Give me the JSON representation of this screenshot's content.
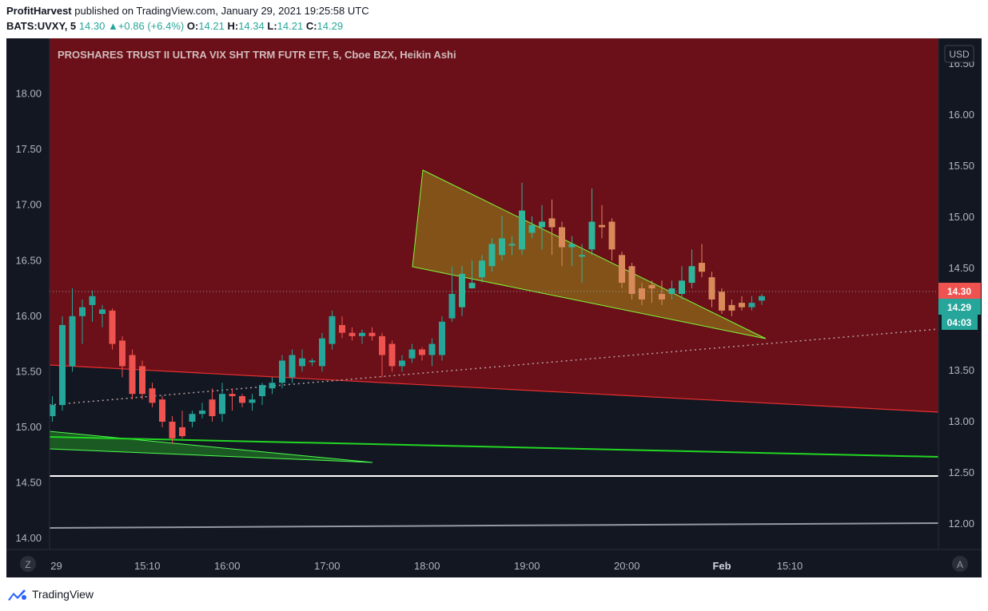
{
  "header": {
    "author": "ProfitHarvest",
    "published": "published on TradingView.com, January 29, 2021 19:25:58 UTC",
    "symbol": "BATS:UVXY, 5",
    "last": "14.30",
    "change": "+0.86 (+6.4%)",
    "o_label": "O:",
    "o": "14.21",
    "h_label": "H:",
    "h": "14.34",
    "l_label": "L:",
    "l": "14.21",
    "c_label": "C:",
    "c": "14.29"
  },
  "footer": {
    "brand": "TradingView"
  },
  "colors": {
    "background": "#131722",
    "up": "#26a69a",
    "down": "#ef5350",
    "zone": "#6b0f18",
    "wedge_fill": "#8a6a1a",
    "wedge_line": "#7cfc3a",
    "green_line": "#22d622",
    "red_line": "#e83030",
    "white_line": "#ffffff",
    "gray_line": "#9598a1"
  },
  "chart_data": {
    "type": "candlestick",
    "title": "PROSHARES TRUST II ULTRA VIX SHT TRM FUTR ETF, 5, Cboe BZX, Heikin Ashi",
    "currency": "USD",
    "left_axis": {
      "range": [
        13.9,
        18.5
      ],
      "ticks": [
        "18.00",
        "17.50",
        "17.00",
        "16.50",
        "16.00",
        "15.50",
        "15.00",
        "14.50",
        "14.00"
      ]
    },
    "right_axis": {
      "range": [
        11.75,
        16.75
      ],
      "ticks": [
        "16.50",
        "16.00",
        "15.50",
        "15.00",
        "14.50",
        "14.00",
        "13.50",
        "13.00",
        "12.50",
        "12.00"
      ]
    },
    "x_ticks": [
      "29",
      "15:10",
      "16:00",
      "17:00",
      "18:00",
      "19:00",
      "20:00",
      "Feb",
      "15:10"
    ],
    "x_tick_index": [
      0.4,
      9.5,
      17.5,
      27.5,
      37.5,
      47.5,
      57.5,
      67.0,
      73.8
    ],
    "price_labels": {
      "last": "14.30",
      "close": "14.29",
      "countdown": "04:03"
    },
    "axis_buttons": {
      "left": "Z",
      "right": "A"
    },
    "grid": true,
    "candles": [
      [
        15.1,
        15.2,
        15.05,
        15.28
      ],
      [
        15.2,
        15.92,
        15.15,
        16.0
      ],
      [
        15.55,
        16.0,
        15.5,
        16.25
      ],
      [
        16.0,
        16.08,
        15.75,
        16.15
      ],
      [
        16.1,
        16.18,
        15.95,
        16.23
      ],
      [
        16.02,
        16.06,
        15.9,
        16.1
      ],
      [
        16.05,
        15.75,
        15.7,
        16.07
      ],
      [
        15.78,
        15.55,
        15.45,
        15.82
      ],
      [
        15.65,
        15.3,
        15.25,
        15.7
      ],
      [
        15.55,
        15.3,
        15.25,
        15.6
      ],
      [
        15.35,
        15.22,
        15.18,
        15.4
      ],
      [
        15.25,
        15.05,
        15.0,
        15.28
      ],
      [
        15.05,
        14.9,
        14.85,
        15.1
      ],
      [
        15.0,
        14.92,
        14.9,
        15.15
      ],
      [
        15.05,
        15.12,
        15.0,
        15.15
      ],
      [
        15.12,
        15.15,
        15.08,
        15.22
      ],
      [
        15.25,
        15.1,
        15.05,
        15.35
      ],
      [
        15.12,
        15.3,
        15.05,
        15.4
      ],
      [
        15.3,
        15.28,
        15.15,
        15.35
      ],
      [
        15.28,
        15.22,
        15.18,
        15.3
      ],
      [
        15.22,
        15.25,
        15.15,
        15.3
      ],
      [
        15.28,
        15.38,
        15.2,
        15.4
      ],
      [
        15.35,
        15.4,
        15.3,
        15.45
      ],
      [
        15.4,
        15.6,
        15.35,
        15.65
      ],
      [
        15.45,
        15.65,
        15.4,
        15.7
      ],
      [
        15.55,
        15.62,
        15.5,
        15.7
      ],
      [
        15.6,
        15.6,
        15.55,
        15.62
      ],
      [
        15.55,
        15.8,
        15.5,
        15.85
      ],
      [
        15.75,
        16.0,
        15.7,
        16.05
      ],
      [
        15.92,
        15.85,
        15.8,
        16.0
      ],
      [
        15.85,
        15.82,
        15.78,
        15.9
      ],
      [
        15.82,
        15.85,
        15.75,
        15.88
      ],
      [
        15.85,
        15.82,
        15.78,
        15.9
      ],
      [
        15.82,
        15.65,
        15.45,
        15.85
      ],
      [
        15.75,
        15.55,
        15.5,
        15.78
      ],
      [
        15.55,
        15.6,
        15.5,
        15.65
      ],
      [
        15.62,
        15.7,
        15.58,
        15.75
      ],
      [
        15.7,
        15.65,
        15.6,
        15.72
      ],
      [
        15.65,
        15.75,
        15.55,
        15.8
      ],
      [
        15.65,
        15.95,
        15.6,
        16.0
      ],
      [
        15.98,
        16.2,
        15.95,
        16.45
      ],
      [
        16.08,
        16.38,
        16.0,
        16.45
      ],
      [
        16.25,
        16.3,
        16.25,
        16.5
      ],
      [
        16.35,
        16.5,
        16.3,
        16.55
      ],
      [
        16.45,
        16.65,
        16.4,
        16.7
      ],
      [
        16.55,
        16.7,
        16.5,
        16.9
      ],
      [
        16.65,
        16.65,
        16.55,
        16.72
      ],
      [
        16.6,
        16.95,
        16.55,
        17.2
      ],
      [
        16.75,
        16.82,
        16.7,
        16.9
      ],
      [
        16.8,
        16.85,
        16.6,
        17.0
      ],
      [
        16.88,
        16.8,
        16.55,
        17.05
      ],
      [
        16.8,
        16.62,
        16.45,
        16.85
      ],
      [
        16.62,
        16.65,
        16.45,
        16.72
      ],
      [
        16.55,
        16.55,
        16.3,
        16.65
      ],
      [
        16.6,
        16.85,
        16.55,
        17.15
      ],
      [
        16.82,
        16.8,
        16.7,
        17.0
      ],
      [
        16.85,
        16.6,
        16.5,
        16.88
      ],
      [
        16.55,
        16.3,
        16.25,
        16.58
      ],
      [
        16.45,
        16.2,
        16.15,
        16.48
      ],
      [
        16.25,
        16.15,
        16.1,
        16.3
      ],
      [
        16.28,
        16.25,
        16.12,
        16.32
      ],
      [
        16.2,
        16.15,
        16.1,
        16.32
      ],
      [
        16.2,
        16.25,
        16.15,
        16.32
      ],
      [
        16.2,
        16.32,
        16.15,
        16.45
      ],
      [
        16.3,
        16.45,
        16.25,
        16.6
      ],
      [
        16.48,
        16.4,
        16.35,
        16.65
      ],
      [
        16.35,
        16.15,
        16.08,
        16.4
      ],
      [
        16.22,
        16.05,
        16.02,
        16.25
      ],
      [
        16.1,
        16.05,
        16.0,
        16.15
      ],
      [
        16.12,
        16.08,
        16.05,
        16.18
      ],
      [
        16.08,
        16.12,
        16.05,
        16.18
      ],
      [
        16.14,
        16.18,
        16.1,
        16.2
      ]
    ]
  }
}
